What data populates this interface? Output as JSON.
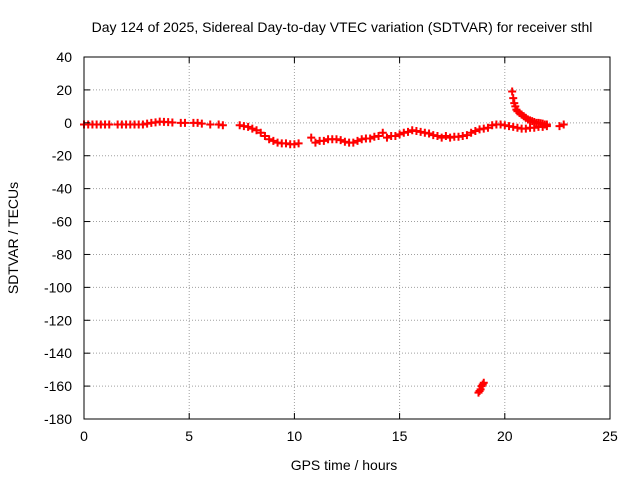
{
  "chart_data": {
    "type": "scatter",
    "title": "Day 124 of 2025, Sidereal Day-to-day VTEC variation (SDTVAR) for receiver sthl",
    "xlabel": "GPS time / hours",
    "ylabel": "SDTVAR / TECUs",
    "xlim": [
      0,
      25
    ],
    "ylim": [
      -180,
      40
    ],
    "grid": true,
    "marker": "plus",
    "series_color": "#ff0000",
    "x_ticks": [
      0,
      5,
      10,
      15,
      20,
      25
    ],
    "y_ticks": [
      40,
      20,
      0,
      -20,
      -40,
      -60,
      -80,
      -100,
      -120,
      -140,
      -160,
      -180
    ],
    "series": [
      {
        "name": "SDTVAR",
        "points": [
          [
            0.0,
            -1
          ],
          [
            0.2,
            -1
          ],
          [
            0.4,
            -1
          ],
          [
            0.6,
            -1
          ],
          [
            0.8,
            -1
          ],
          [
            1.0,
            -1
          ],
          [
            1.2,
            -1
          ],
          [
            1.6,
            -1
          ],
          [
            1.8,
            -1
          ],
          [
            2.0,
            -1
          ],
          [
            2.2,
            -1
          ],
          [
            2.4,
            -1
          ],
          [
            2.6,
            -1
          ],
          [
            2.8,
            -1
          ],
          [
            3.0,
            -0.5
          ],
          [
            3.2,
            0
          ],
          [
            3.4,
            0.3
          ],
          [
            3.6,
            0.7
          ],
          [
            3.8,
            0.6
          ],
          [
            4.0,
            0.4
          ],
          [
            4.2,
            0.2
          ],
          [
            4.6,
            0
          ],
          [
            4.8,
            0
          ],
          [
            5.2,
            0
          ],
          [
            5.4,
            0
          ],
          [
            5.6,
            -0.5
          ],
          [
            6.0,
            -1
          ],
          [
            6.4,
            -1
          ],
          [
            6.6,
            -1.5
          ],
          [
            7.4,
            -1.5
          ],
          [
            7.6,
            -2
          ],
          [
            7.8,
            -2.5
          ],
          [
            8.0,
            -3.5
          ],
          [
            8.2,
            -4.5
          ],
          [
            8.4,
            -6
          ],
          [
            8.6,
            -8
          ],
          [
            8.8,
            -10
          ],
          [
            9.0,
            -11
          ],
          [
            9.2,
            -12
          ],
          [
            9.4,
            -12.5
          ],
          [
            9.6,
            -12.5
          ],
          [
            9.8,
            -13
          ],
          [
            10.0,
            -13
          ],
          [
            10.2,
            -12.5
          ],
          [
            10.8,
            -9
          ],
          [
            11.0,
            -12
          ],
          [
            11.2,
            -11
          ],
          [
            11.4,
            -11
          ],
          [
            11.6,
            -10
          ],
          [
            11.8,
            -10
          ],
          [
            12.0,
            -10
          ],
          [
            12.2,
            -10.5
          ],
          [
            12.4,
            -11.5
          ],
          [
            12.6,
            -12
          ],
          [
            12.8,
            -12
          ],
          [
            13.0,
            -11
          ],
          [
            13.2,
            -10
          ],
          [
            13.4,
            -9.5
          ],
          [
            13.6,
            -9.5
          ],
          [
            13.8,
            -8.5
          ],
          [
            14.0,
            -8
          ],
          [
            14.2,
            -6
          ],
          [
            14.4,
            -9
          ],
          [
            14.6,
            -8
          ],
          [
            14.8,
            -8
          ],
          [
            15.0,
            -7
          ],
          [
            15.2,
            -6
          ],
          [
            15.4,
            -5.5
          ],
          [
            15.6,
            -4.5
          ],
          [
            15.8,
            -5
          ],
          [
            16.0,
            -5.5
          ],
          [
            16.2,
            -6
          ],
          [
            16.4,
            -6.5
          ],
          [
            16.6,
            -7.5
          ],
          [
            16.8,
            -8
          ],
          [
            17.0,
            -9
          ],
          [
            17.2,
            -8
          ],
          [
            17.4,
            -9
          ],
          [
            17.6,
            -8.5
          ],
          [
            17.8,
            -8.5
          ],
          [
            18.0,
            -8
          ],
          [
            18.2,
            -7.5
          ],
          [
            18.4,
            -6
          ],
          [
            18.6,
            -5
          ],
          [
            18.8,
            -4
          ],
          [
            19.0,
            -3.5
          ],
          [
            19.2,
            -3
          ],
          [
            19.4,
            -1.5
          ],
          [
            19.6,
            -1
          ],
          [
            19.8,
            -1
          ],
          [
            20.0,
            -1.5
          ],
          [
            20.2,
            -2
          ],
          [
            20.4,
            -2.5
          ],
          [
            20.6,
            -3
          ],
          [
            20.8,
            -3.5
          ],
          [
            21.0,
            -3.5
          ],
          [
            21.2,
            -3
          ],
          [
            21.4,
            -3
          ],
          [
            21.6,
            -2.5
          ],
          [
            21.8,
            -2.5
          ],
          [
            22.0,
            -2
          ],
          [
            22.6,
            -2
          ],
          [
            22.8,
            -1
          ],
          [
            20.35,
            19
          ],
          [
            20.4,
            15
          ],
          [
            20.45,
            12
          ],
          [
            20.5,
            10
          ],
          [
            20.55,
            8
          ],
          [
            20.6,
            7
          ],
          [
            20.7,
            6
          ],
          [
            20.8,
            5
          ],
          [
            20.9,
            4
          ],
          [
            21.0,
            3
          ],
          [
            21.1,
            2
          ],
          [
            21.2,
            1.5
          ],
          [
            21.3,
            1
          ],
          [
            21.4,
            0.5
          ],
          [
            21.5,
            0
          ],
          [
            21.6,
            0
          ],
          [
            21.7,
            -0.3
          ],
          [
            21.8,
            -0.5
          ],
          [
            21.9,
            -1
          ],
          [
            22.0,
            -1
          ],
          [
            18.75,
            -164
          ],
          [
            18.8,
            -163
          ],
          [
            18.85,
            -162
          ],
          [
            18.9,
            -160
          ],
          [
            18.95,
            -159
          ],
          [
            19.0,
            -158
          ]
        ]
      }
    ]
  }
}
